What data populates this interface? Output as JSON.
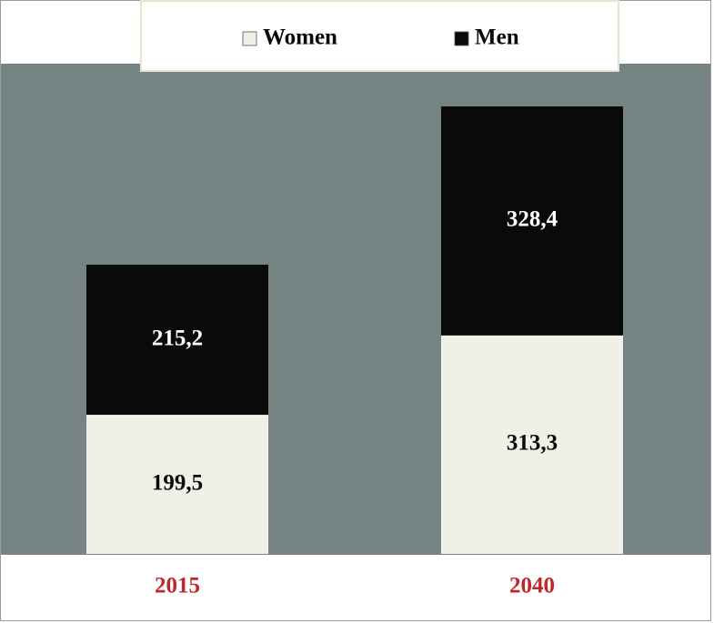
{
  "chart_data": {
    "type": "bar",
    "stacked": true,
    "categories": [
      "2015",
      "2040"
    ],
    "category_label_color": "#c0272d",
    "series": [
      {
        "name": "Women",
        "color": "#f1f0e6",
        "label_color": "#0a0a0a",
        "values": [
          199.5,
          313.3
        ],
        "value_labels": [
          "199,5",
          "313,3"
        ]
      },
      {
        "name": "Men",
        "color": "#0a0a0a",
        "label_color": "#ffffff",
        "values": [
          215.2,
          328.4
        ],
        "value_labels": [
          "215,2",
          "328,4"
        ]
      }
    ]
  }
}
